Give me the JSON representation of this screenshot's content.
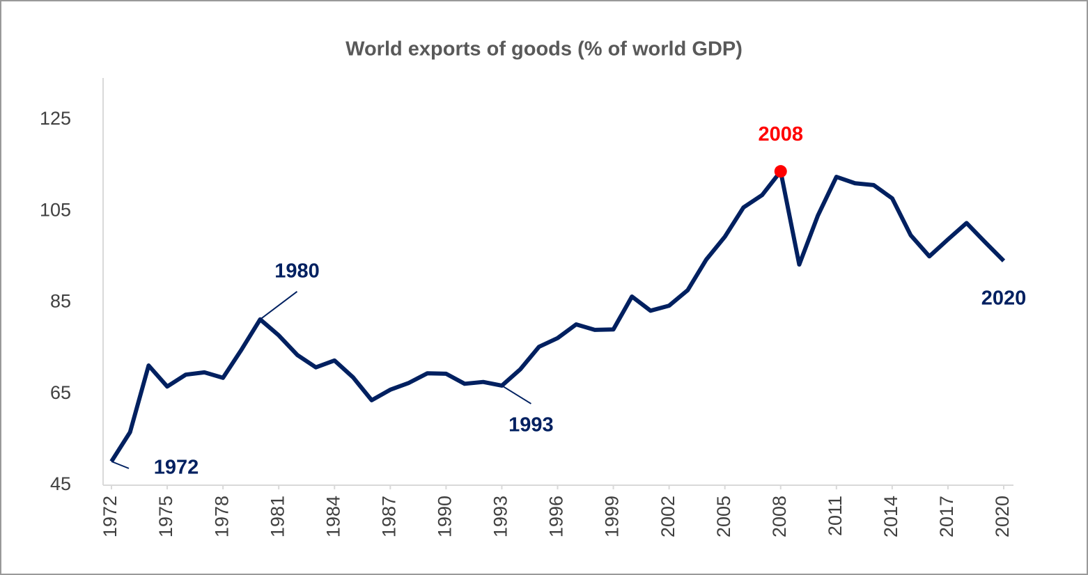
{
  "chart_data": {
    "type": "line",
    "title": "World exports of goods (% of world GDP)",
    "x": [
      1972,
      1973,
      1974,
      1975,
      1976,
      1977,
      1978,
      1979,
      1980,
      1981,
      1982,
      1983,
      1984,
      1985,
      1986,
      1987,
      1988,
      1989,
      1990,
      1991,
      1992,
      1993,
      1994,
      1995,
      1996,
      1997,
      1998,
      1999,
      2000,
      2001,
      2002,
      2003,
      2004,
      2005,
      2006,
      2007,
      2008,
      2009,
      2010,
      2011,
      2012,
      2013,
      2014,
      2015,
      2016,
      2017,
      2018,
      2019,
      2020
    ],
    "series": [
      {
        "name": "World exports of goods",
        "color": "#002060",
        "values": [
          50.2,
          56.6,
          71.2,
          66.6,
          69.2,
          69.7,
          68.5,
          74.7,
          81.3,
          77.8,
          73.5,
          70.8,
          72.3,
          68.6,
          63.6,
          65.9,
          67.4,
          69.5,
          69.4,
          67.2,
          67.6,
          66.8,
          70.4,
          75.3,
          77.2,
          80.2,
          79.0,
          79.1,
          86.3,
          83.2,
          84.3,
          87.7,
          94.4,
          99.4,
          105.8,
          108.5,
          113.7,
          93.3,
          104.0,
          112.5,
          111.1,
          110.7,
          107.8,
          99.7,
          95.1,
          98.8,
          102.4,
          98.2,
          94.1
        ]
      }
    ],
    "xlim": [
      1972,
      2020
    ],
    "xticks": [
      1972,
      1975,
      1978,
      1981,
      1984,
      1987,
      1990,
      1993,
      1996,
      1999,
      2002,
      2005,
      2008,
      2011,
      2014,
      2017,
      2020
    ],
    "ylim": [
      45,
      135
    ],
    "yticks": [
      45,
      65,
      85,
      105,
      125
    ],
    "grid": false,
    "annotations": [
      {
        "text": "1972",
        "x": 1972,
        "color": "#002060"
      },
      {
        "text": "1980",
        "x": 1980,
        "color": "#002060"
      },
      {
        "text": "1993",
        "x": 1993,
        "color": "#002060"
      },
      {
        "text": "2008",
        "x": 2008,
        "color": "#ff0000"
      },
      {
        "text": "2020",
        "x": 2020,
        "color": "#002060"
      }
    ]
  }
}
